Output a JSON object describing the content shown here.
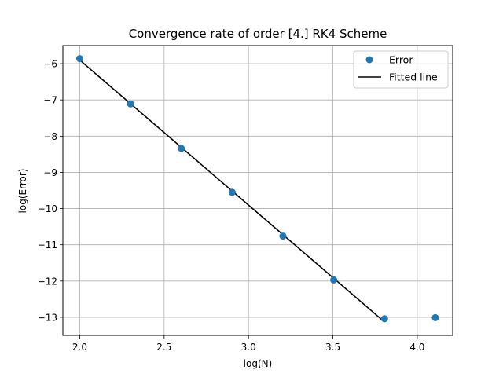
{
  "chart_data": {
    "type": "scatter",
    "title": "Convergence rate of order [4.] RK4 Scheme",
    "xlabel": "log(N)",
    "ylabel": "log(Error)",
    "xlim": [
      1.9,
      4.21
    ],
    "ylim": [
      -13.5,
      -5.5
    ],
    "grid": true,
    "legend_position": "top-right",
    "x_ticks": [
      2.0,
      2.5,
      3.0,
      3.5,
      4.0
    ],
    "x_tick_labels": [
      "2.0",
      "2.5",
      "3.0",
      "3.5",
      "4.0"
    ],
    "y_ticks": [
      -6,
      -7,
      -8,
      -9,
      -10,
      -11,
      -12,
      -13
    ],
    "y_tick_labels": [
      "−6",
      "−7",
      "−8",
      "−9",
      "−10",
      "−11",
      "−12",
      "−13"
    ],
    "series": [
      {
        "name": "Error",
        "kind": "scatter",
        "color": "#1f77b4",
        "x": [
          2.0,
          2.301,
          2.602,
          2.903,
          3.204,
          3.505,
          3.806,
          4.107
        ],
        "y": [
          -5.86,
          -7.11,
          -8.34,
          -9.55,
          -10.76,
          -11.97,
          -13.04,
          -13.01
        ]
      },
      {
        "name": "Fitted line",
        "kind": "line",
        "color": "#000000",
        "x": [
          2.0,
          3.806
        ],
        "y": [
          -5.9,
          -13.13
        ]
      }
    ]
  }
}
